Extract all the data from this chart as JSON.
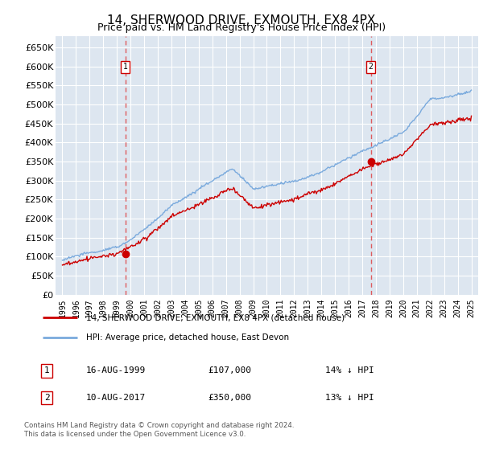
{
  "title": "14, SHERWOOD DRIVE, EXMOUTH, EX8 4PX",
  "subtitle": "Price paid vs. HM Land Registry's House Price Index (HPI)",
  "ylim": [
    0,
    680000
  ],
  "yticks": [
    0,
    50000,
    100000,
    150000,
    200000,
    250000,
    300000,
    350000,
    400000,
    450000,
    500000,
    550000,
    600000,
    650000
  ],
  "xlim_start": 1994.5,
  "xlim_end": 2025.5,
  "xticks": [
    1995,
    1996,
    1997,
    1998,
    1999,
    2000,
    2001,
    2002,
    2003,
    2004,
    2005,
    2006,
    2007,
    2008,
    2009,
    2010,
    2011,
    2012,
    2013,
    2014,
    2015,
    2016,
    2017,
    2018,
    2019,
    2020,
    2021,
    2022,
    2023,
    2024,
    2025
  ],
  "line_red_label": "14, SHERWOOD DRIVE, EXMOUTH, EX8 4PX (detached house)",
  "line_blue_label": "HPI: Average price, detached house, East Devon",
  "transactions": [
    {
      "id": 1,
      "year": 1999.62,
      "price": 107000,
      "date": "16-AUG-1999",
      "hpi_diff": "14% ↓ HPI"
    },
    {
      "id": 2,
      "year": 2017.62,
      "price": 350000,
      "date": "10-AUG-2017",
      "hpi_diff": "13% ↓ HPI"
    }
  ],
  "footer": "Contains HM Land Registry data © Crown copyright and database right 2024.\nThis data is licensed under the Open Government Licence v3.0.",
  "background_color": "#dde6f0",
  "grid_color": "#ffffff",
  "red_line_color": "#cc0000",
  "blue_line_color": "#7aaadd",
  "dashed_line_color": "#dd4444",
  "title_fontsize": 11,
  "subtitle_fontsize": 9,
  "legend_table_row1": [
    "1",
    "16-AUG-1999",
    "£107,000",
    "14% ↓ HPI"
  ],
  "legend_table_row2": [
    "2",
    "10-AUG-2017",
    "£350,000",
    "13% ↓ HPI"
  ]
}
